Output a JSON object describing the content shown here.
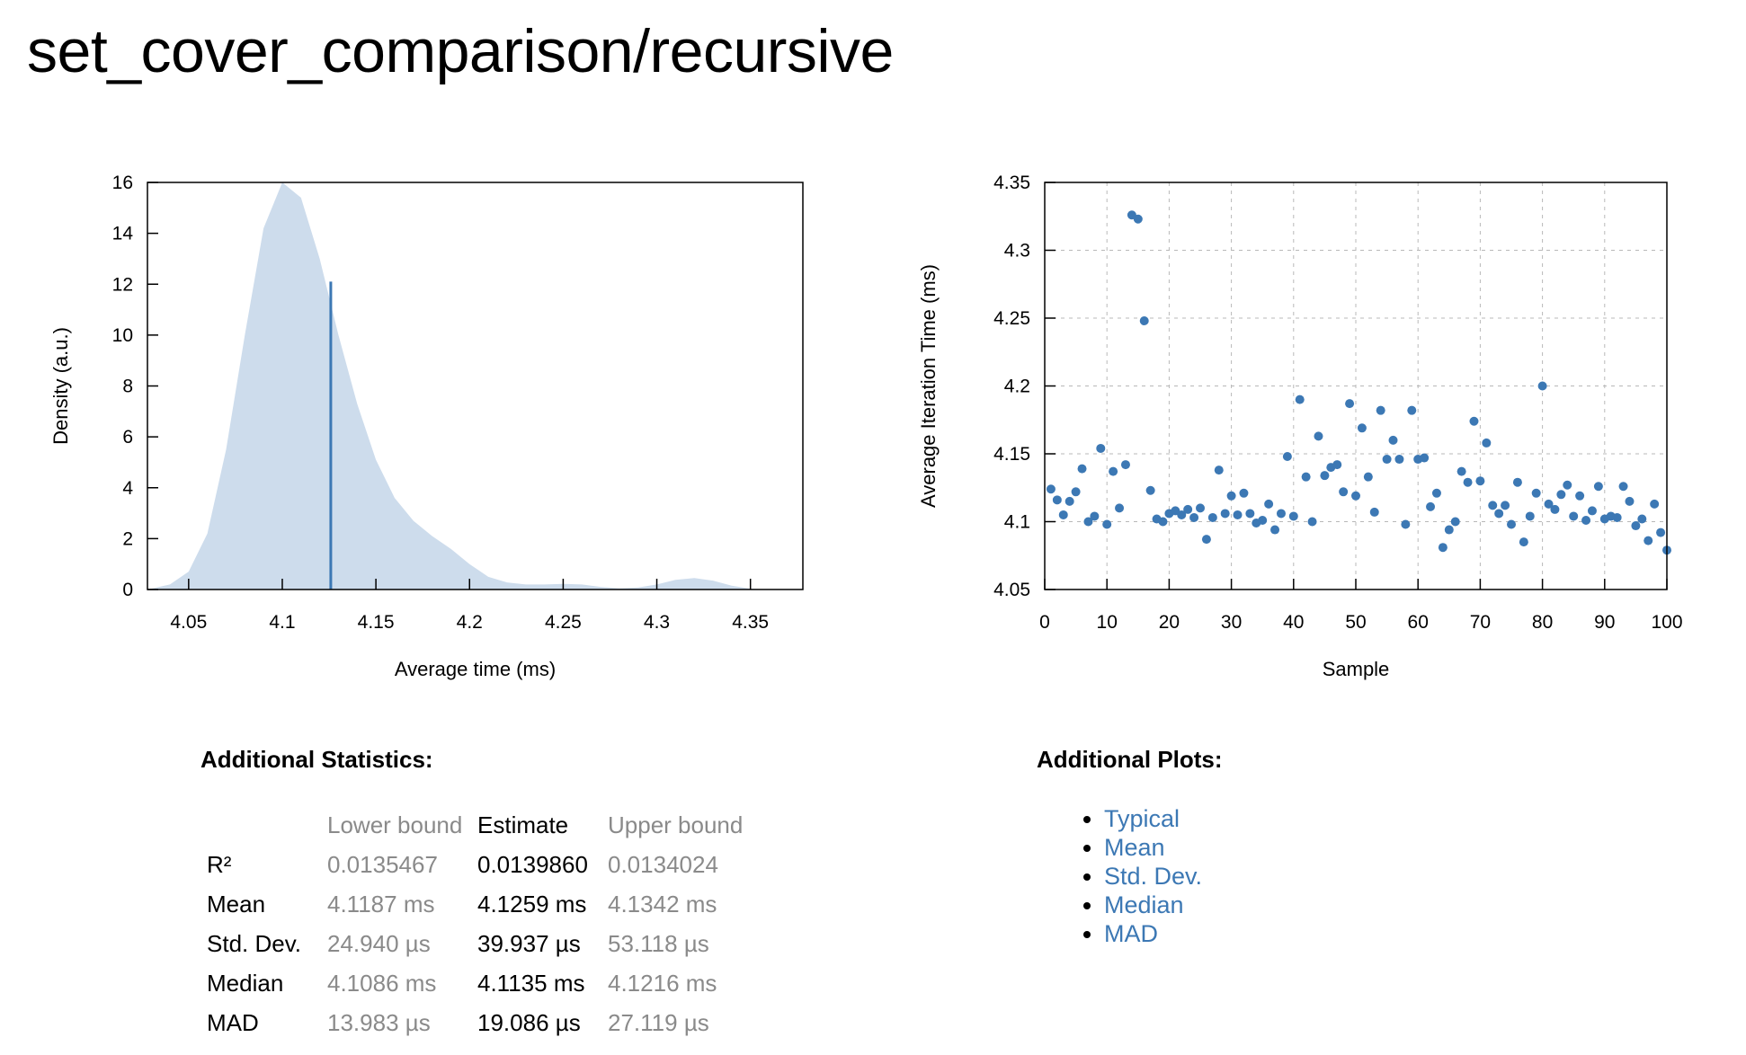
{
  "page": {
    "title": "set_cover_comparison/recursive"
  },
  "chart_data": [
    {
      "type": "area",
      "name": "pdf",
      "xlabel": "Average time (ms)",
      "ylabel": "Density (a.u.)",
      "xlim": [
        4.028,
        4.378
      ],
      "ylim": [
        0,
        16
      ],
      "xticks": [
        "4.05",
        "4.1",
        "4.15",
        "4.2",
        "4.25",
        "4.3",
        "4.35"
      ],
      "yticks": [
        "0",
        "2",
        "4",
        "6",
        "8",
        "10",
        "12",
        "14",
        "16"
      ],
      "grid": false,
      "legend": "none",
      "fill_color": "#cddcec",
      "line_color": "#3c78b4",
      "density_x": [
        4.028,
        4.04,
        4.05,
        4.06,
        4.07,
        4.08,
        4.09,
        4.1,
        4.11,
        4.12,
        4.13,
        4.14,
        4.15,
        4.16,
        4.17,
        4.18,
        4.19,
        4.2,
        4.21,
        4.22,
        4.23,
        4.24,
        4.25,
        4.26,
        4.27,
        4.28,
        4.29,
        4.3,
        4.31,
        4.32,
        4.33,
        4.34,
        4.35,
        4.36
      ],
      "density_y": [
        0.0,
        0.2,
        0.7,
        2.2,
        5.5,
        10.0,
        14.2,
        16.0,
        15.4,
        13.0,
        10.0,
        7.3,
        5.1,
        3.6,
        2.7,
        2.1,
        1.6,
        1.0,
        0.5,
        0.28,
        0.2,
        0.2,
        0.22,
        0.2,
        0.1,
        0.05,
        0.08,
        0.2,
        0.38,
        0.45,
        0.35,
        0.15,
        0.03,
        0.0
      ],
      "mean_line": {
        "x": 4.1259,
        "y": 12.1
      }
    },
    {
      "type": "scatter",
      "name": "regression",
      "xlabel": "Sample",
      "ylabel": "Average Iteration Time (ms)",
      "xlim": [
        0,
        100
      ],
      "ylim": [
        4.05,
        4.35
      ],
      "xticks": [
        "0",
        "10",
        "20",
        "30",
        "40",
        "50",
        "60",
        "70",
        "80",
        "90",
        "100"
      ],
      "yticks": [
        "4.05",
        "4.1",
        "4.15",
        "4.2",
        "4.25",
        "4.3",
        "4.35"
      ],
      "grid": true,
      "legend": "none",
      "point_color": "#3c78b4",
      "points": [
        [
          1,
          4.124
        ],
        [
          2,
          4.116
        ],
        [
          3,
          4.105
        ],
        [
          4,
          4.115
        ],
        [
          5,
          4.122
        ],
        [
          6,
          4.139
        ],
        [
          7,
          4.1
        ],
        [
          8,
          4.104
        ],
        [
          9,
          4.154
        ],
        [
          10,
          4.098
        ],
        [
          11,
          4.137
        ],
        [
          12,
          4.11
        ],
        [
          13,
          4.142
        ],
        [
          14,
          4.326
        ],
        [
          15,
          4.323
        ],
        [
          16,
          4.248
        ],
        [
          17,
          4.123
        ],
        [
          18,
          4.102
        ],
        [
          19,
          4.1
        ],
        [
          20,
          4.106
        ],
        [
          21,
          4.108
        ],
        [
          22,
          4.105
        ],
        [
          23,
          4.109
        ],
        [
          24,
          4.103
        ],
        [
          25,
          4.11
        ],
        [
          26,
          4.087
        ],
        [
          27,
          4.103
        ],
        [
          28,
          4.138
        ],
        [
          29,
          4.106
        ],
        [
          30,
          4.119
        ],
        [
          31,
          4.105
        ],
        [
          32,
          4.121
        ],
        [
          33,
          4.106
        ],
        [
          34,
          4.099
        ],
        [
          35,
          4.101
        ],
        [
          36,
          4.113
        ],
        [
          37,
          4.094
        ],
        [
          38,
          4.106
        ],
        [
          39,
          4.148
        ],
        [
          40,
          4.104
        ],
        [
          41,
          4.19
        ],
        [
          42,
          4.133
        ],
        [
          43,
          4.1
        ],
        [
          44,
          4.163
        ],
        [
          45,
          4.134
        ],
        [
          46,
          4.14
        ],
        [
          47,
          4.142
        ],
        [
          48,
          4.122
        ],
        [
          49,
          4.187
        ],
        [
          50,
          4.119
        ],
        [
          51,
          4.169
        ],
        [
          52,
          4.133
        ],
        [
          53,
          4.107
        ],
        [
          54,
          4.182
        ],
        [
          55,
          4.146
        ],
        [
          56,
          4.16
        ],
        [
          57,
          4.146
        ],
        [
          58,
          4.098
        ],
        [
          59,
          4.182
        ],
        [
          60,
          4.146
        ],
        [
          61,
          4.147
        ],
        [
          62,
          4.111
        ],
        [
          63,
          4.121
        ],
        [
          64,
          4.081
        ],
        [
          65,
          4.094
        ],
        [
          66,
          4.1
        ],
        [
          67,
          4.137
        ],
        [
          68,
          4.129
        ],
        [
          69,
          4.174
        ],
        [
          70,
          4.13
        ],
        [
          71,
          4.158
        ],
        [
          72,
          4.112
        ],
        [
          73,
          4.106
        ],
        [
          74,
          4.112
        ],
        [
          75,
          4.098
        ],
        [
          76,
          4.129
        ],
        [
          77,
          4.085
        ],
        [
          78,
          4.104
        ],
        [
          79,
          4.121
        ],
        [
          80,
          4.2
        ],
        [
          81,
          4.113
        ],
        [
          82,
          4.109
        ],
        [
          83,
          4.12
        ],
        [
          84,
          4.127
        ],
        [
          85,
          4.104
        ],
        [
          86,
          4.119
        ],
        [
          87,
          4.101
        ],
        [
          88,
          4.108
        ],
        [
          89,
          4.126
        ],
        [
          90,
          4.102
        ],
        [
          91,
          4.104
        ],
        [
          92,
          4.103
        ],
        [
          93,
          4.126
        ],
        [
          94,
          4.115
        ],
        [
          95,
          4.097
        ],
        [
          96,
          4.102
        ],
        [
          97,
          4.086
        ],
        [
          98,
          4.113
        ],
        [
          99,
          4.092
        ],
        [
          100,
          4.079
        ]
      ]
    }
  ],
  "stats": {
    "heading": "Additional Statistics:",
    "columns": [
      "",
      "Lower bound",
      "Estimate",
      "Upper bound"
    ],
    "rows": [
      {
        "label": "R²",
        "lower": "0.0135467",
        "estimate": "0.0139860",
        "upper": "0.0134024"
      },
      {
        "label": "Mean",
        "lower": "4.1187 ms",
        "estimate": "4.1259 ms",
        "upper": "4.1342 ms"
      },
      {
        "label": "Std. Dev.",
        "lower": "24.940 µs",
        "estimate": "39.937 µs",
        "upper": "53.118 µs"
      },
      {
        "label": "Median",
        "lower": "4.1086 ms",
        "estimate": "4.1135 ms",
        "upper": "4.1216 ms"
      },
      {
        "label": "MAD",
        "lower": "13.983 µs",
        "estimate": "19.086 µs",
        "upper": "27.119 µs"
      }
    ]
  },
  "plots": {
    "heading": "Additional Plots:",
    "links": [
      "Typical",
      "Mean",
      "Std. Dev.",
      "Median",
      "MAD"
    ]
  }
}
